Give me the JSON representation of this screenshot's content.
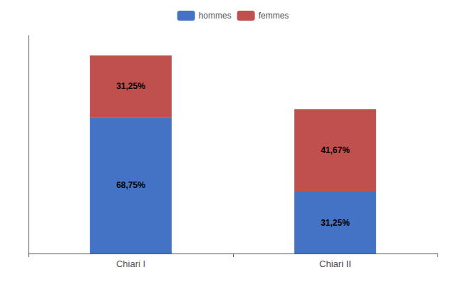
{
  "chart_data": {
    "type": "bar",
    "stacked": true,
    "categories": [
      "Chiari I",
      "Chiari II"
    ],
    "series": [
      {
        "name": "hommes",
        "color": "#4472C4",
        "values": [
          68.75,
          31.25
        ],
        "value_labels": [
          "68,75%",
          "31,25%"
        ]
      },
      {
        "name": "femmes",
        "color": "#C0504D",
        "values": [
          31.25,
          41.67
        ],
        "value_labels": [
          "31,25%",
          "41,67%"
        ]
      }
    ],
    "ylim": [
      0,
      110
    ],
    "yticks": [],
    "data_labels": true,
    "tick_labels": "x",
    "legend": "top",
    "grid": false
  }
}
